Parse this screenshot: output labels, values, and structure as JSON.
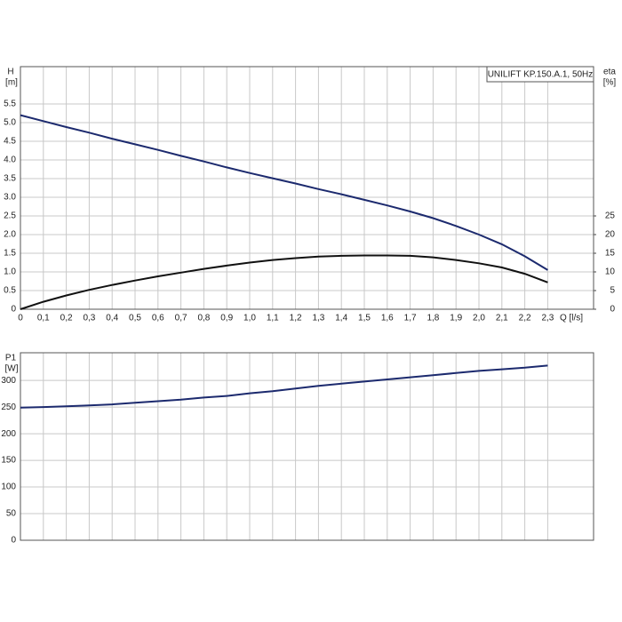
{
  "chart_data": [
    {
      "type": "line",
      "title": "UNILIFT KP.150.A.1, 50Hz",
      "y_label": "H",
      "y_unit": "[m]",
      "y2_label": "eta",
      "y2_unit": "[%]",
      "x_label": "Q [l/s]",
      "xlim": [
        0,
        2.5
      ],
      "ylim": [
        0,
        6.5
      ],
      "y2lim": [
        0,
        65
      ],
      "xticks": [
        0,
        {
          "value": 0.1,
          "label": "0,1"
        },
        {
          "value": 0.2,
          "label": "0,2"
        },
        {
          "value": 0.3,
          "label": "0,3"
        },
        {
          "value": 0.4,
          "label": "0,4"
        },
        {
          "value": 0.5,
          "label": "0,5"
        },
        {
          "value": 0.6,
          "label": "0,6"
        },
        {
          "value": 0.7,
          "label": "0,7"
        },
        {
          "value": 0.8,
          "label": "0,8"
        },
        {
          "value": 0.9,
          "label": "0,9"
        },
        {
          "value": 1.0,
          "label": "1,0"
        },
        {
          "value": 1.1,
          "label": "1,1"
        },
        {
          "value": 1.2,
          "label": "1,2"
        },
        {
          "value": 1.3,
          "label": "1,3"
        },
        {
          "value": 1.4,
          "label": "1,4"
        },
        {
          "value": 1.5,
          "label": "1,5"
        },
        {
          "value": 1.6,
          "label": "1,6"
        },
        {
          "value": 1.7,
          "label": "1,7"
        },
        {
          "value": 1.8,
          "label": "1,8"
        },
        {
          "value": 1.9,
          "label": "1,9"
        },
        {
          "value": 2.0,
          "label": "2,0"
        },
        {
          "value": 2.1,
          "label": "2,1"
        },
        {
          "value": 2.2,
          "label": "2,2"
        },
        {
          "value": 2.3,
          "label": "2,3"
        }
      ],
      "yticks": [
        0,
        {
          "value": 0.5,
          "label": "0.5"
        },
        {
          "value": 1.0,
          "label": "1.0"
        },
        1.5,
        {
          "value": 2.0,
          "label": "2.0"
        },
        2.5,
        {
          "value": 3.0,
          "label": "3.0"
        },
        3.5,
        {
          "value": 4.0,
          "label": "4.0"
        },
        4.5,
        {
          "value": 5.0,
          "label": "5.0"
        },
        5.5
      ],
      "y2ticks": [
        0,
        5,
        10,
        15,
        20,
        25
      ],
      "show_xtick_labels": true,
      "grid": true,
      "series": [
        {
          "color": "#1c2a6e",
          "x": [
            0,
            0.1,
            0.2,
            0.3,
            0.4,
            0.5,
            0.6,
            0.7,
            0.8,
            0.9,
            1.0,
            1.1,
            1.2,
            1.3,
            1.4,
            1.5,
            1.6,
            1.7,
            1.8,
            1.9,
            2.0,
            2.1,
            2.2,
            2.3
          ],
          "values": [
            5.2,
            5.04,
            4.88,
            4.73,
            4.57,
            4.42,
            4.27,
            4.11,
            3.96,
            3.8,
            3.65,
            3.51,
            3.37,
            3.22,
            3.08,
            2.93,
            2.78,
            2.62,
            2.44,
            2.23,
            2.0,
            1.74,
            1.42,
            1.05
          ]
        },
        {
          "color": "#111111",
          "axis": "y2",
          "x": [
            0,
            0.1,
            0.2,
            0.3,
            0.4,
            0.5,
            0.6,
            0.7,
            0.8,
            0.9,
            1.0,
            1.1,
            1.2,
            1.3,
            1.4,
            1.5,
            1.6,
            1.7,
            1.8,
            1.9,
            2.0,
            2.1,
            2.2,
            2.3
          ],
          "values": [
            0,
            2,
            3.7,
            5.2,
            6.5,
            7.7,
            8.8,
            9.8,
            10.8,
            11.7,
            12.5,
            13.2,
            13.7,
            14.1,
            14.3,
            14.4,
            14.4,
            14.3,
            13.9,
            13.2,
            12.3,
            11.2,
            9.5,
            7.2
          ]
        }
      ]
    },
    {
      "type": "line",
      "y_label": "P1",
      "y_unit": "[W]",
      "xlim": [
        0,
        2.5
      ],
      "ylim": [
        0,
        352
      ],
      "xticks": [
        0,
        0.1,
        0.2,
        0.3,
        0.4,
        0.5,
        0.6,
        0.7,
        0.8,
        0.9,
        1.0,
        1.1,
        1.2,
        1.3,
        1.4,
        1.5,
        1.6,
        1.7,
        1.8,
        1.9,
        2.0,
        2.1,
        2.2,
        2.3
      ],
      "yticks": [
        0,
        50,
        100,
        150,
        200,
        250,
        300
      ],
      "show_xtick_labels": false,
      "grid": true,
      "series": [
        {
          "color": "#1c2a6e",
          "x": [
            0,
            0.1,
            0.2,
            0.3,
            0.4,
            0.5,
            0.6,
            0.7,
            0.8,
            0.9,
            1.0,
            1.1,
            1.2,
            1.3,
            1.4,
            1.5,
            1.6,
            1.7,
            1.8,
            1.9,
            2.0,
            2.1,
            2.2,
            2.3
          ],
          "values": [
            249,
            250,
            251.5,
            253,
            255,
            258,
            261,
            264,
            268,
            271,
            276,
            280,
            285,
            290,
            294,
            298,
            302,
            306,
            310,
            314,
            318,
            321,
            324,
            328
          ]
        }
      ]
    }
  ]
}
